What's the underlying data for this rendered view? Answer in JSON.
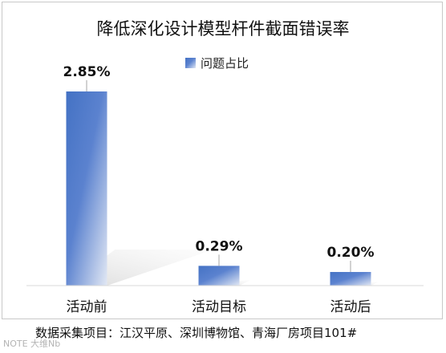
{
  "chart_data": {
    "type": "bar",
    "title": "降低深化设计模型杆件截面错误率",
    "categories": [
      "活动前",
      "活动目标",
      "活动后"
    ],
    "series": [
      {
        "name": "问题占比",
        "values": [
          2.85,
          0.29,
          0.2
        ]
      }
    ],
    "data_labels": [
      "2.85%",
      "0.29%",
      "0.20%"
    ],
    "ylim": [
      0,
      3.2
    ],
    "legend_position": "top-center",
    "grid": false,
    "colors": {
      "bar_dark": "#4472c4",
      "bar_light": "#dfe6f4",
      "axis": "#d9d9d9"
    }
  },
  "footer": {
    "source": "数据采集项目：江汉平原、深圳博物馆、青海厂房项目101#",
    "watermark": "NOTE 大维Nb"
  }
}
